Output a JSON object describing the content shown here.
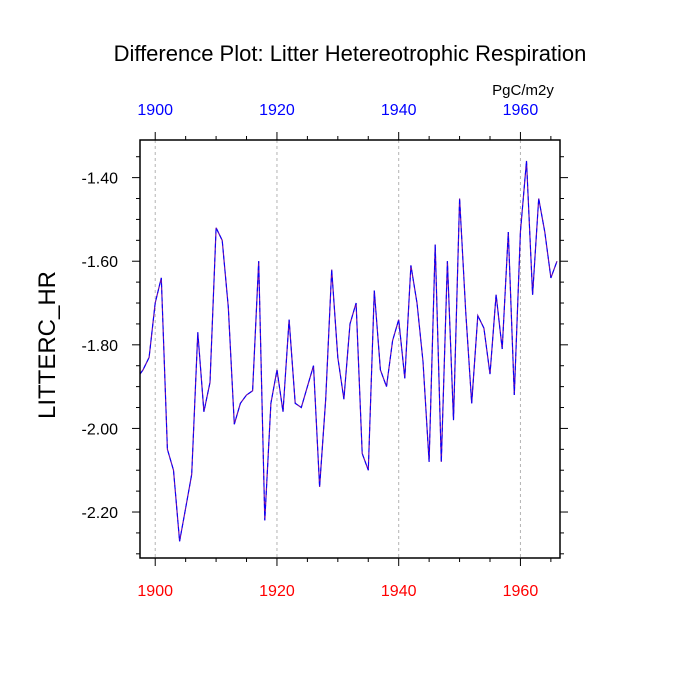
{
  "colors": {
    "top_axis_labels": "#0000ff",
    "bottom_axis_labels": "#ff0000",
    "series_line": "#6a0dad",
    "series_overlay": "#0000ff",
    "gridline": "#b3b3b3"
  },
  "chart_data": {
    "type": "line",
    "title": "Difference Plot: Litter Hetereotrophic Respiration",
    "units": "PgC/m2y",
    "ylabel": "LITTERC_HR",
    "xlabel": "",
    "xlim": [
      1897.5,
      1966.5
    ],
    "ylim": [
      -2.31,
      -1.31
    ],
    "x_ticks": [
      1900,
      1920,
      1940,
      1960
    ],
    "x_tick_labels": [
      "1900",
      "1920",
      "1940",
      "1960"
    ],
    "y_ticks": [
      -2.2,
      -2.0,
      -1.8,
      -1.6,
      -1.4
    ],
    "y_tick_labels": [
      "-2.20",
      "-2.00",
      "-1.80",
      "-1.60",
      "-1.40"
    ],
    "grid": "vertical dashed at major x ticks",
    "legend": "none",
    "series": [
      {
        "x": [
          1897.5,
          1898,
          1899,
          1900,
          1901,
          1902,
          1903,
          1904,
          1905,
          1906,
          1907,
          1908,
          1909,
          1910,
          1911,
          1912,
          1913,
          1914,
          1915,
          1916,
          1917,
          1918,
          1919,
          1920,
          1921,
          1922,
          1923,
          1924,
          1925,
          1926,
          1927,
          1928,
          1929,
          1930,
          1931,
          1932,
          1933,
          1934,
          1935,
          1936,
          1937,
          1938,
          1939,
          1940,
          1941,
          1942,
          1943,
          1944,
          1945,
          1946,
          1947,
          1948,
          1949,
          1950,
          1951,
          1952,
          1953,
          1954,
          1955,
          1956,
          1957,
          1958,
          1959,
          1960,
          1961,
          1962,
          1963,
          1964,
          1965,
          1966
        ],
        "y": [
          -1.87,
          -1.86,
          -1.83,
          -1.7,
          -1.64,
          -2.05,
          -2.1,
          -2.27,
          -2.19,
          -2.11,
          -1.77,
          -1.96,
          -1.89,
          -1.52,
          -1.55,
          -1.71,
          -1.99,
          -1.94,
          -1.92,
          -1.91,
          -1.6,
          -2.22,
          -1.94,
          -1.86,
          -1.96,
          -1.74,
          -1.94,
          -1.95,
          -1.9,
          -1.85,
          -2.14,
          -1.93,
          -1.62,
          -1.83,
          -1.93,
          -1.75,
          -1.7,
          -2.06,
          -2.1,
          -1.67,
          -1.86,
          -1.9,
          -1.79,
          -1.74,
          -1.88,
          -1.61,
          -1.7,
          -1.84,
          -2.08,
          -1.56,
          -2.08,
          -1.6,
          -1.98,
          -1.45,
          -1.72,
          -1.94,
          -1.73,
          -1.76,
          -1.87,
          -1.68,
          -1.81,
          -1.53,
          -1.92,
          -1.53,
          -1.36,
          -1.68,
          -1.45,
          -1.53,
          -1.64,
          -1.6
        ]
      }
    ]
  }
}
